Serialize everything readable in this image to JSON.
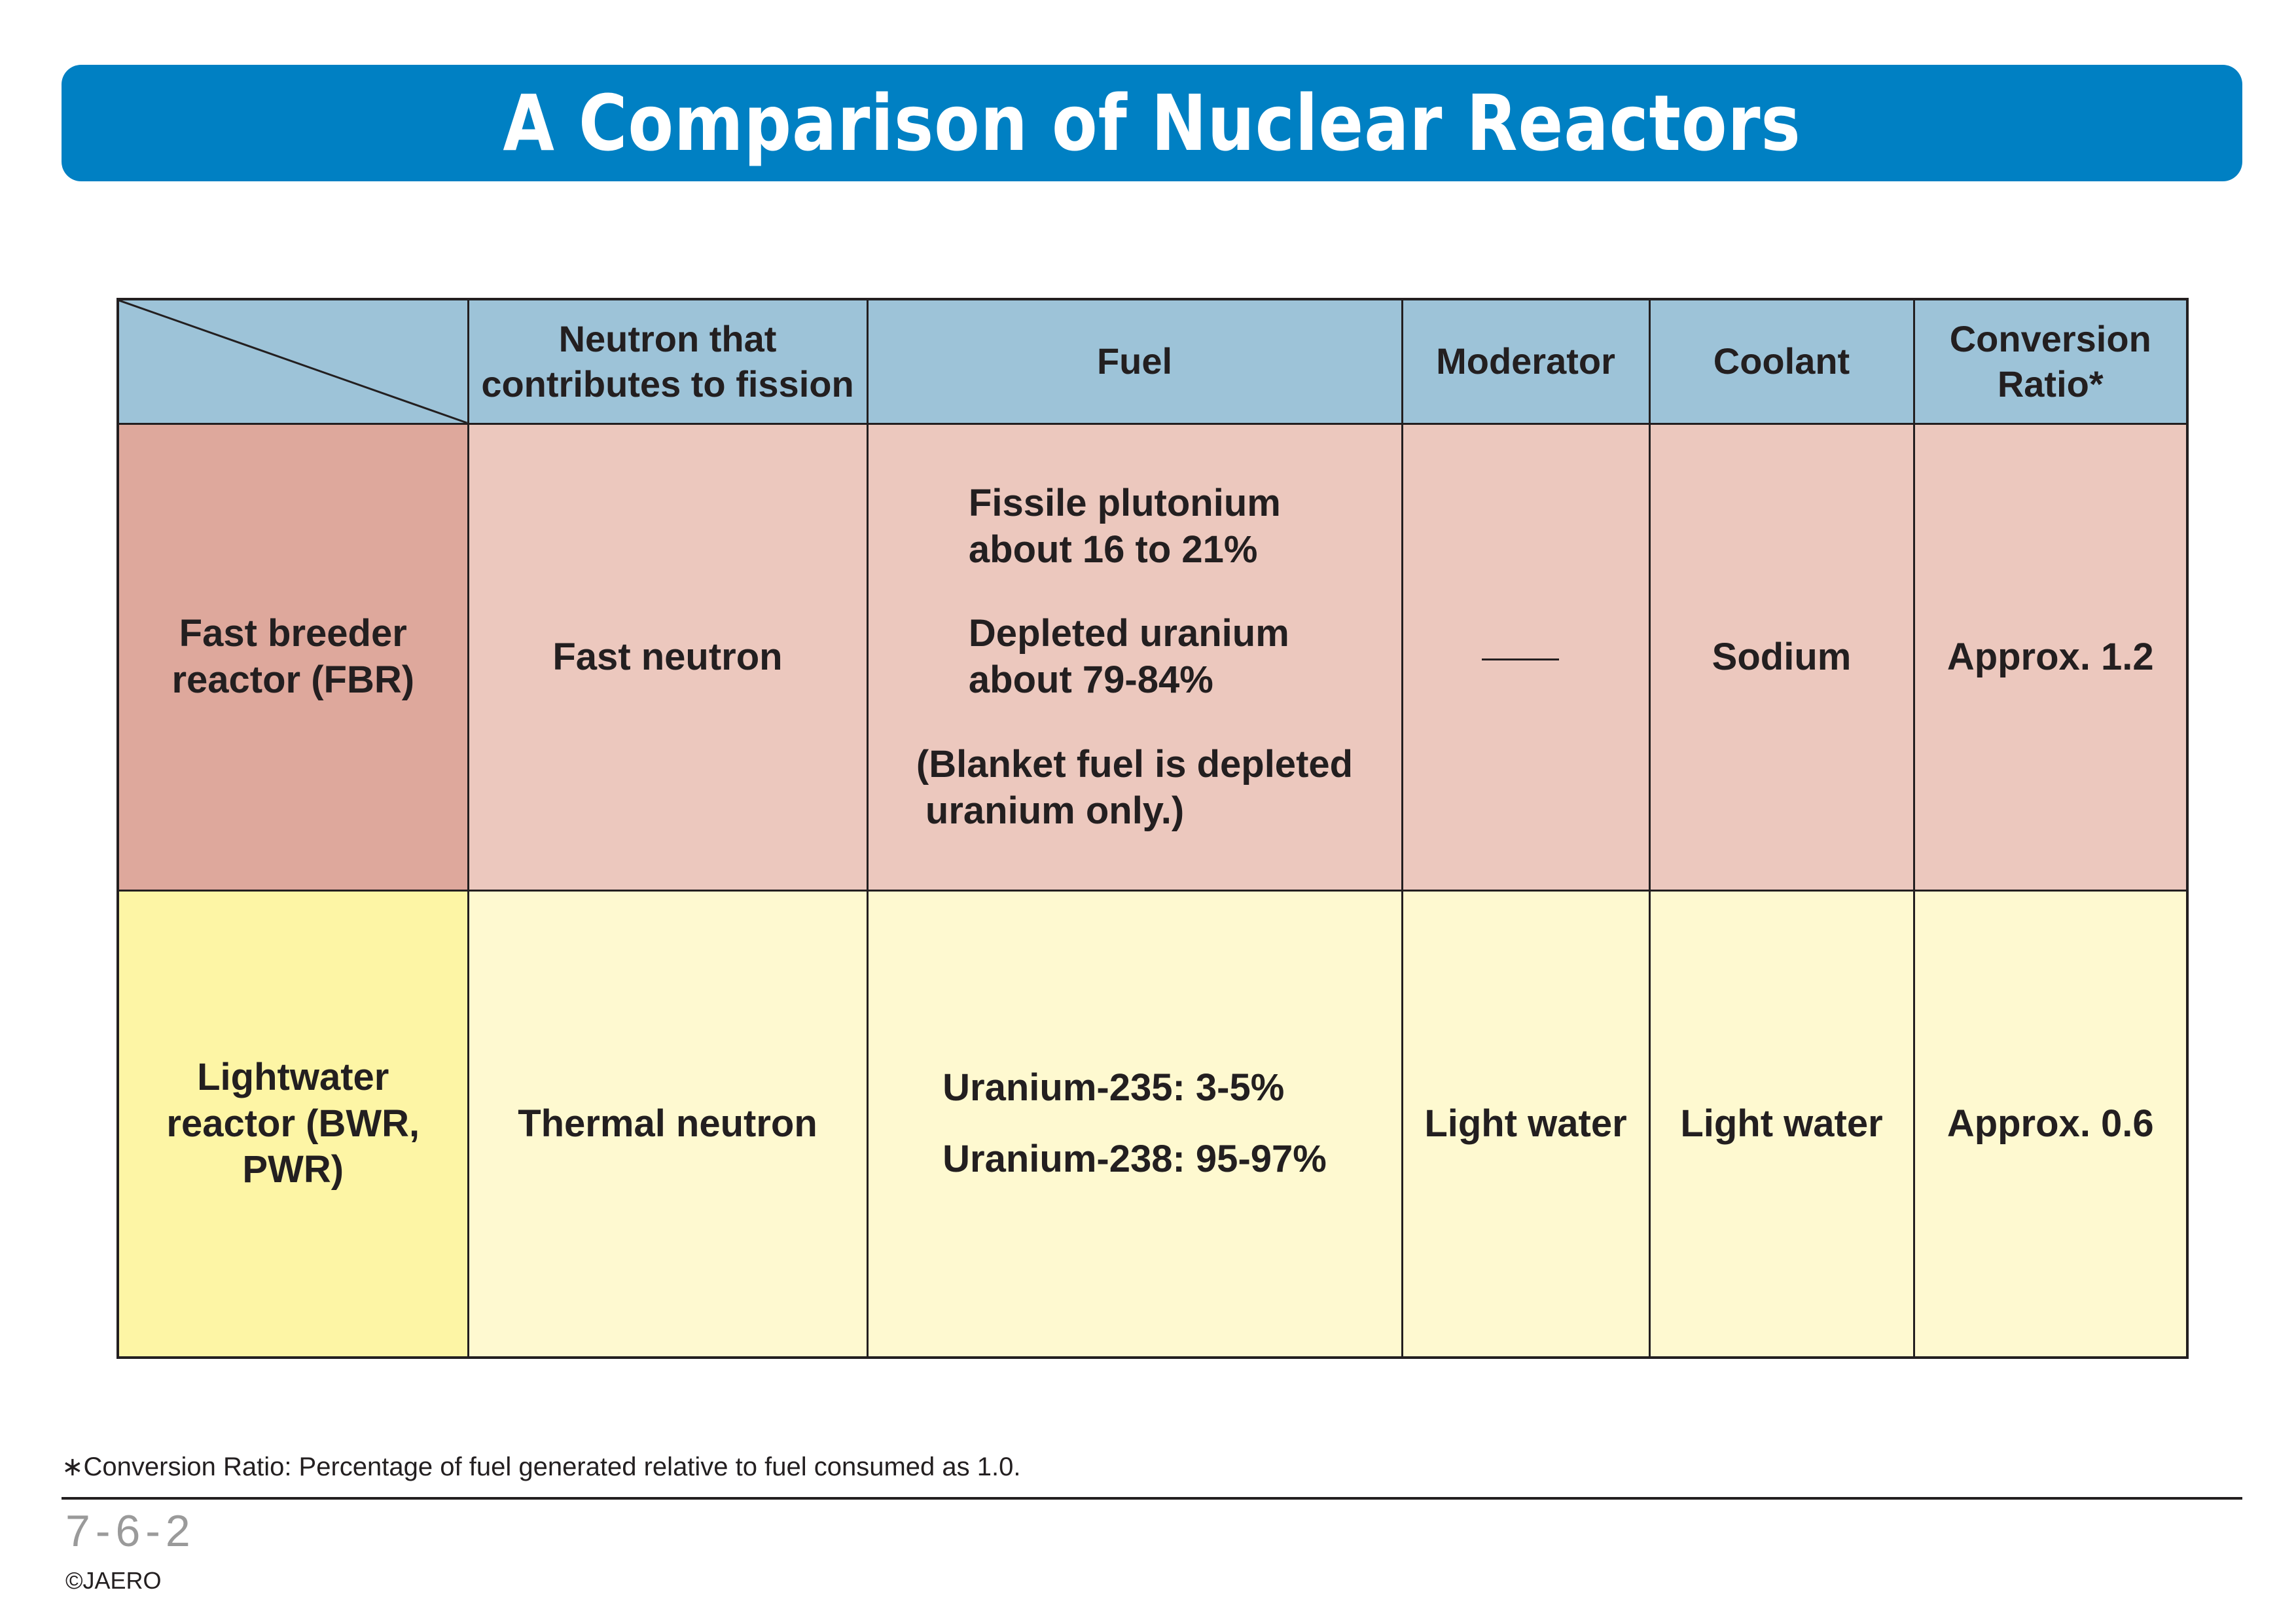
{
  "title": "A Comparison of Nuclear Reactors",
  "table": {
    "headers": [
      "Neutron that contributes to fission",
      "Fuel",
      "Moderator",
      "Coolant",
      "Conversion Ratio*"
    ],
    "rows": [
      {
        "label": "Fast breeder reactor (FBR)",
        "neutron": "Fast neutron",
        "fuel": {
          "plutonium": "Fissile plutonium",
          "plutonium_share": "about 16 to 21%",
          "uranium": "Depleted uranium",
          "uranium_share": "about 79-84%",
          "note": "(Blanket fuel is depleted",
          "note_cont": "uranium only.)"
        },
        "moderator": "—",
        "coolant": "Sodium",
        "conversion_ratio": "Approx. 1.2"
      },
      {
        "label": "Lightwater reactor (BWR, PWR)",
        "neutron": "Thermal neutron",
        "fuel": {
          "u235": "Uranium-235: 3-5%",
          "u238": "Uranium-238: 95-97%"
        },
        "moderator": "Light water",
        "coolant": "Light water",
        "conversion_ratio": "Approx. 0.6"
      }
    ]
  },
  "footnote": "∗Conversion Ratio: Percentage of fuel generated relative to fuel consumed as 1.0.",
  "page_number": "7-6-2",
  "copyright": "©JAERO",
  "colors": {
    "title_bar": "#0080c3",
    "header_bg": "#9dc3d8",
    "fbr_label_bg": "#dea89c",
    "fbr_cell_bg": "#ecc8be",
    "lwr_label_bg": "#fdf5a5",
    "lwr_cell_bg": "#fef9d0"
  }
}
